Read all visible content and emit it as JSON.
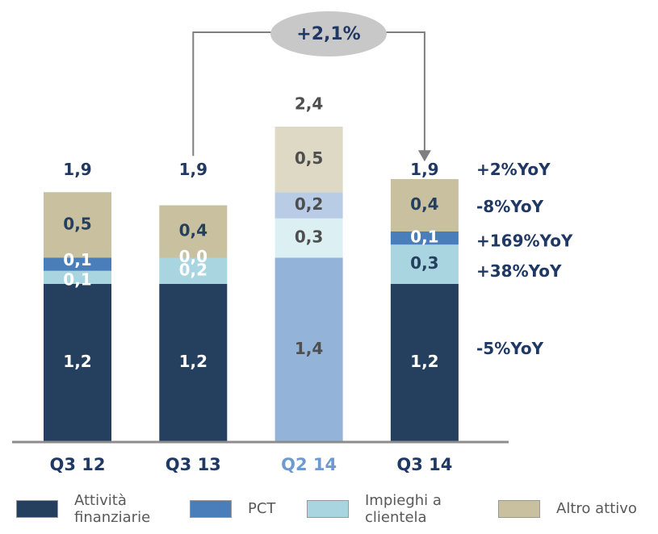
{
  "chart_data": {
    "type": "stacked-bar",
    "categories": [
      "Q3 12",
      "Q3 13",
      "Q2 14",
      "Q3 14"
    ],
    "category_colors": [
      "#1f3864",
      "#1f3864",
      "#6f9ad0",
      "#1f3864"
    ],
    "series": [
      {
        "name": "Attività finanziarie",
        "color": "#253f5f",
        "colors": [
          "#253f5f",
          "#253f5f",
          "#93b3d8",
          "#253f5f"
        ],
        "label_colors": [
          "#ffffff",
          "#ffffff",
          "#4f4f4f",
          "#ffffff"
        ],
        "values": [
          1.2,
          1.2,
          1.4,
          1.2
        ],
        "value_labels": [
          "1,2",
          "1,2",
          "1,4",
          "1,2"
        ],
        "yoy": "-5%YoY"
      },
      {
        "name": "PCT",
        "color": "#4a7ebb",
        "colors": [
          "#4a7ebb",
          "#4a7ebb",
          "#b9cce6",
          "#4a7ebb"
        ],
        "label_colors": [
          "#ffffff",
          "#ffffff",
          "#4f4f4f",
          "#ffffff"
        ],
        "values": [
          0.1,
          0.0,
          0.2,
          0.1
        ],
        "value_labels": [
          "0,1",
          "0,0",
          "0,2",
          "0,1"
        ],
        "yoy": "+169%YoY"
      },
      {
        "name": "Impieghi a clientela",
        "color": "#a8d5e0",
        "colors": [
          "#a8d5e0",
          "#a8d5e0",
          "#dcf0f4",
          "#a8d5e0"
        ],
        "label_colors": [
          "#ffffff",
          "#ffffff",
          "#4f4f4f",
          "#253f5f"
        ],
        "values": [
          0.1,
          0.2,
          0.3,
          0.3
        ],
        "value_labels": [
          "0,1",
          "0,2",
          "0,3",
          "0,3"
        ],
        "yoy": "+38%YoY"
      },
      {
        "name": "Altro attivo",
        "color": "#c8c09e",
        "colors": [
          "#c8c09e",
          "#c8c09e",
          "#ddd9c4",
          "#c8c09e"
        ],
        "label_colors": [
          "#253f5f",
          "#253f5f",
          "#4f4f4f",
          "#253f5f"
        ],
        "values": [
          0.5,
          0.4,
          0.5,
          0.4
        ],
        "value_labels": [
          "0,5",
          "0,4",
          "0,5",
          "0,4"
        ],
        "yoy": "-8%YoY"
      }
    ],
    "totals": {
      "values": [
        1.9,
        1.9,
        2.4,
        1.9
      ],
      "value_labels": [
        "1,9",
        "1,9",
        "2,4",
        "1,9"
      ],
      "colors": [
        "#1f3864",
        "#1f3864",
        "#4f4f4f",
        "#1f3864"
      ],
      "yoy": "+2%YoY"
    },
    "change": "+2,1%"
  }
}
